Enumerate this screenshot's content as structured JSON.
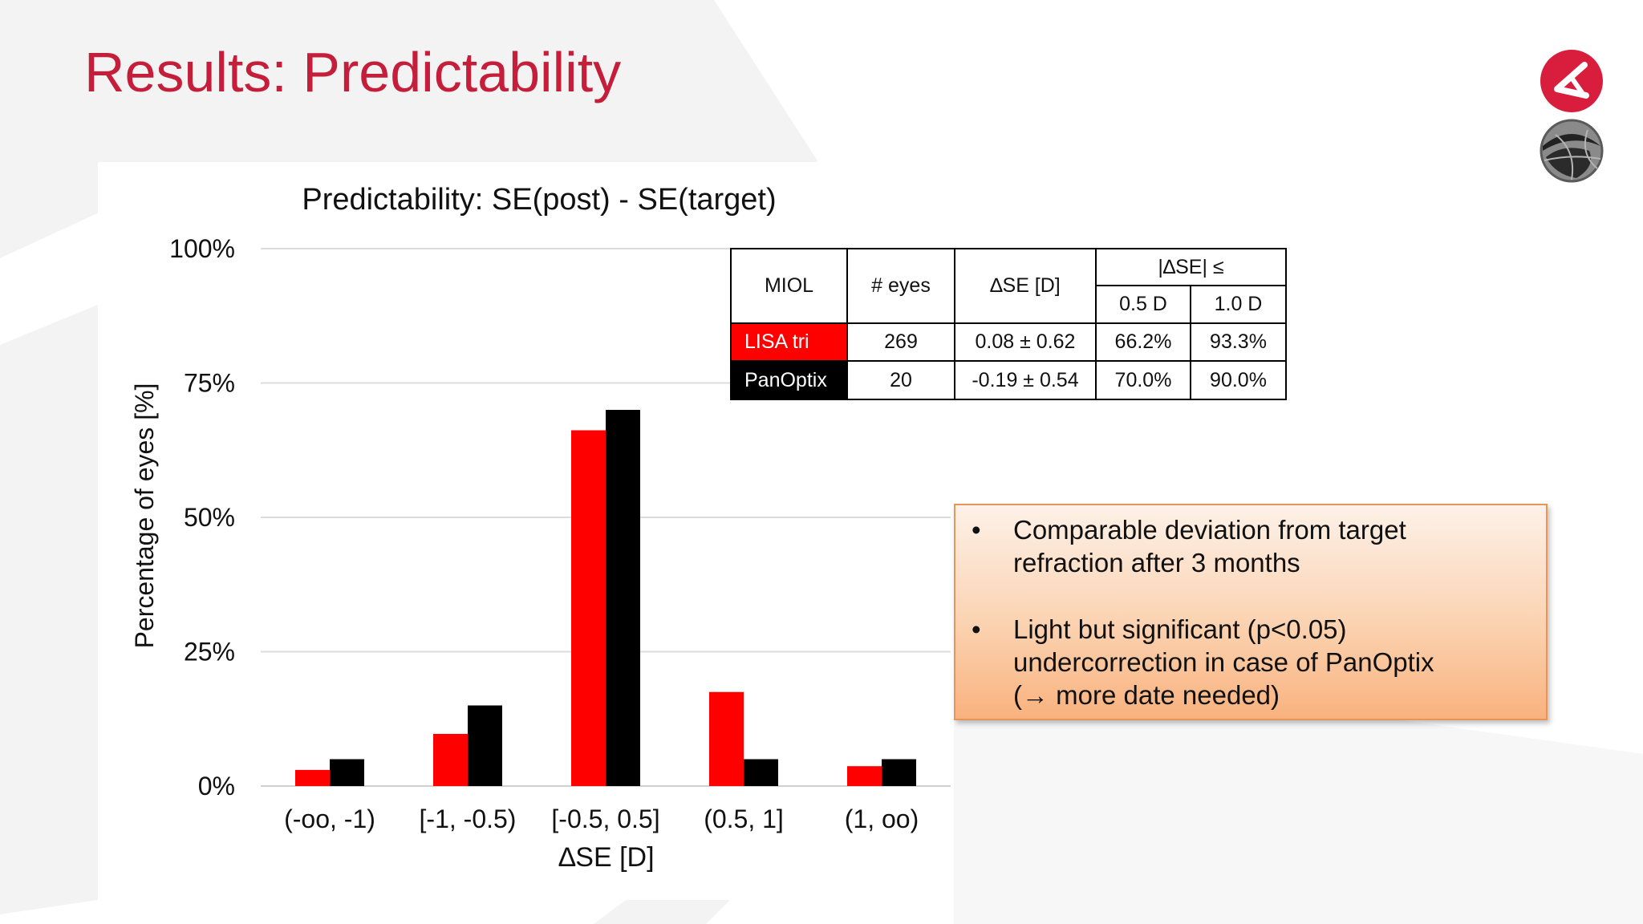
{
  "slide": {
    "title": "Results: Predictability"
  },
  "colors": {
    "accent": "#c41e3a",
    "lisa_tri": "#ff0000",
    "panoptix": "#000000",
    "box_border": "#e8955a"
  },
  "logos": [
    "red-circle-logo-icon",
    "gray-globe-logo-icon"
  ],
  "chart_data": {
    "type": "bar",
    "title": "Predictability: SE(post) - SE(target)",
    "xlabel": "∆SE [D]",
    "ylabel": "Percentage of eyes [%]",
    "categories": [
      "(-oo, -1)",
      "[-1, -0.5)",
      "[-0.5, 0.5]",
      "(0.5, 1]",
      "(1, oo)"
    ],
    "series": [
      {
        "name": "LISA tri",
        "color": "#ff0000",
        "values": [
          3.0,
          9.7,
          66.2,
          17.5,
          3.7
        ]
      },
      {
        "name": "PanOptix",
        "color": "#000000",
        "values": [
          5.0,
          15.0,
          70.0,
          5.0,
          5.0
        ]
      }
    ],
    "ylim": [
      0,
      100
    ],
    "yticks": [
      "0%",
      "25%",
      "50%",
      "75%",
      "100%"
    ],
    "ytick_values": [
      0,
      25,
      50,
      75,
      100
    ],
    "grid": true,
    "legend": "table"
  },
  "table": {
    "headers": {
      "miol": "MIOL",
      "eyes": "# eyes",
      "dse": "∆SE [D]",
      "group": "|∆SE| ≤",
      "d05": "0.5 D",
      "d10": "1.0 D"
    },
    "rows": [
      {
        "miol": "LISA tri",
        "eyes": "269",
        "dse": "0.08 ± 0.62",
        "d05": "66.2%",
        "d10": "93.3%"
      },
      {
        "miol": "PanOptix",
        "eyes": "20",
        "dse": "-0.19 ± 0.54",
        "d05": "70.0%",
        "d10": "90.0%"
      }
    ]
  },
  "conclusions": {
    "bullet": "•",
    "items": [
      {
        "lines": [
          "Comparable deviation from target",
          "refraction after 3 months"
        ]
      },
      {
        "lines": [
          "Light but significant (p<0.05)",
          "undercorrection in case of PanOptix",
          "(→ more date needed)"
        ]
      }
    ]
  }
}
